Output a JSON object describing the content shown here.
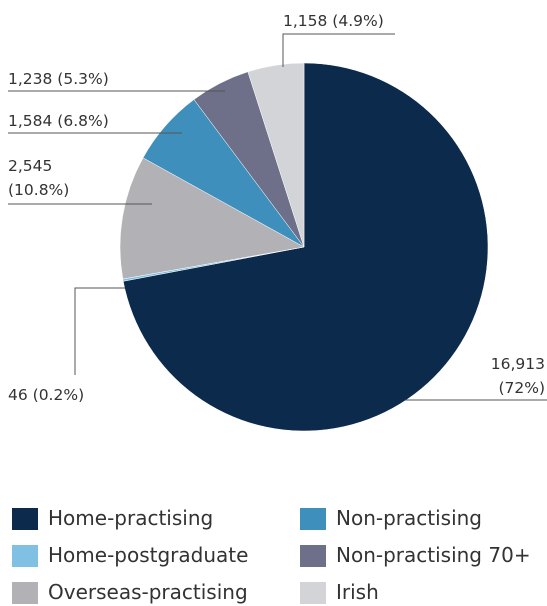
{
  "chart_data": {
    "type": "pie",
    "categories": [
      "Home-practising",
      "Home-postgraduate",
      "Overseas-practising",
      "Non-practising",
      "Non-practising 70+",
      "Irish"
    ],
    "values": [
      16913,
      46,
      2545,
      1584,
      1238,
      1158
    ],
    "value_labels": [
      "16,913 (72%)",
      "46 (0.2%)",
      "2,545 (10.8%)",
      "1,584 (6.8%)",
      "1,238 (5.3%)",
      "1,158 (4.9%)"
    ],
    "colors": [
      "#0c2a4c",
      "#7fc0e3",
      "#b2b2b6",
      "#3f8fbd",
      "#6e7089",
      "#d3d4d8"
    ]
  }
}
